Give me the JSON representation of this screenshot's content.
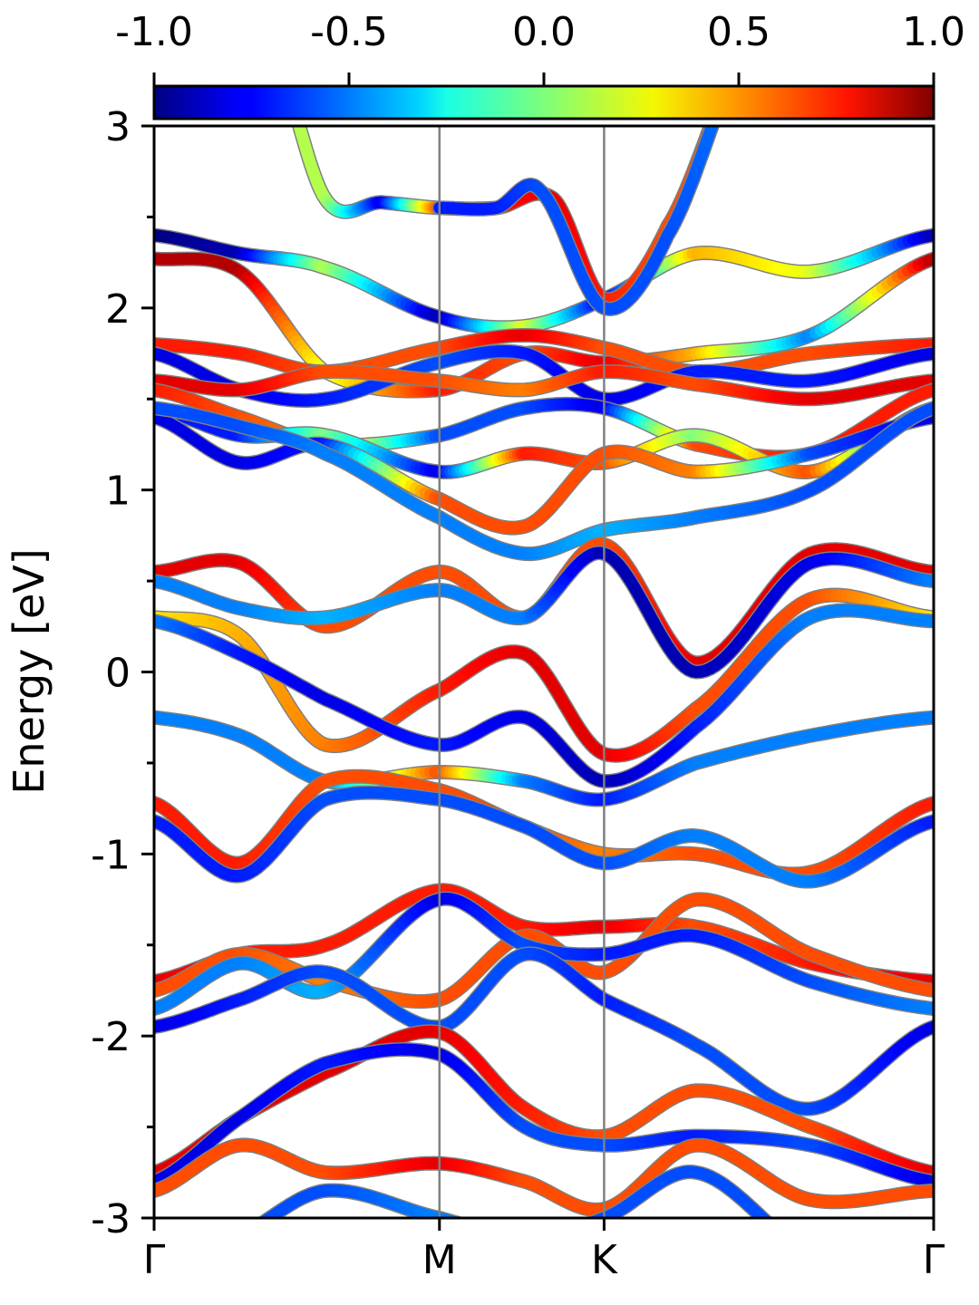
{
  "chart_data": {
    "type": "line",
    "title": "",
    "xlabel": "",
    "ylabel": "Energy [eV]",
    "ylim": [
      -3,
      3
    ],
    "y_ticks": [
      -3,
      -2,
      -1,
      0,
      1,
      2,
      3
    ],
    "y_tick_labels": [
      "-3",
      "-2",
      "-1",
      "0",
      "1",
      "2",
      "3"
    ],
    "k_path": {
      "labels": [
        "Γ",
        "M",
        "K",
        "Γ"
      ],
      "positions": [
        0,
        1,
        1.577,
        2.732
      ]
    },
    "colorbar": {
      "colormap": "jet",
      "range": [
        -1.0,
        1.0
      ],
      "tick_labels": [
        "-1.0",
        "-0.5",
        "0.0",
        "0.5",
        "1.0"
      ],
      "tick_values": [
        -1.0,
        -0.5,
        0.0,
        0.5,
        1.0
      ]
    },
    "grid": false,
    "legend": "none",
    "series": [
      {
        "x": [
          0,
          0.3,
          0.6,
          1.0,
          1.3,
          1.577,
          1.9,
          2.3,
          2.732
        ],
        "y": [
          2.4,
          2.3,
          2.22,
          1.95,
          1.9,
          2.05,
          2.3,
          2.2,
          2.4
        ],
        "c": [
          -1.0,
          -0.9,
          0.1,
          -0.9,
          0.2,
          -0.8,
          0.4,
          0.2,
          -0.9
        ]
      },
      {
        "x": [
          0,
          0.3,
          0.6,
          1.0,
          1.3,
          1.577,
          1.9,
          2.3,
          2.732
        ],
        "y": [
          2.27,
          2.2,
          1.65,
          1.55,
          1.75,
          1.7,
          1.75,
          1.85,
          2.27
        ],
        "c": [
          0.9,
          0.9,
          0.2,
          0.7,
          0.6,
          0.8,
          0.4,
          -0.5,
          0.9
        ]
      },
      {
        "x": [
          0,
          0.3,
          0.6,
          1.0,
          1.3,
          1.577,
          1.9,
          2.3,
          2.732
        ],
        "y": [
          1.8,
          1.75,
          1.65,
          1.78,
          1.85,
          1.78,
          1.65,
          1.75,
          1.8
        ],
        "c": [
          0.7,
          0.7,
          0.6,
          0.6,
          0.8,
          0.6,
          0.6,
          0.6,
          0.7
        ]
      },
      {
        "x": [
          0,
          0.3,
          0.6,
          1.0,
          1.3,
          1.577,
          1.9,
          2.3,
          2.732
        ],
        "y": [
          1.75,
          1.55,
          1.5,
          1.7,
          1.75,
          1.5,
          1.65,
          1.6,
          1.75
        ],
        "c": [
          -0.8,
          -0.8,
          -0.7,
          -0.6,
          -0.7,
          -0.8,
          -0.7,
          -0.7,
          -0.8
        ]
      },
      {
        "x": [
          0,
          0.3,
          0.6,
          1.0,
          1.3,
          1.577,
          1.9,
          2.3,
          2.732
        ],
        "y": [
          1.6,
          1.55,
          1.65,
          1.6,
          1.55,
          1.65,
          1.58,
          1.5,
          1.6
        ],
        "c": [
          0.8,
          0.8,
          0.6,
          0.6,
          0.5,
          0.7,
          0.6,
          0.8,
          0.8
        ]
      },
      {
        "x": [
          0,
          0.3,
          0.6,
          1.0,
          1.3,
          1.577,
          1.9,
          2.3,
          2.732
        ],
        "y": [
          1.55,
          1.4,
          1.25,
          1.3,
          1.45,
          1.45,
          1.25,
          1.2,
          1.55
        ],
        "c": [
          0.7,
          0.6,
          0.5,
          -0.6,
          -0.6,
          -0.8,
          0.6,
          0.7,
          0.7
        ]
      },
      {
        "x": [
          0,
          0.3,
          0.6,
          1.0,
          1.3,
          1.577,
          1.9,
          2.3,
          2.732
        ],
        "y": [
          1.45,
          1.3,
          1.3,
          1.1,
          1.2,
          1.15,
          1.3,
          1.1,
          1.45
        ],
        "c": [
          -0.7,
          -0.7,
          0.0,
          -0.8,
          0.7,
          0.6,
          0.0,
          0.6,
          -0.7
        ]
      },
      {
        "x": [
          0,
          0.3,
          0.6,
          1.0,
          1.3,
          1.577,
          1.9,
          2.3,
          2.732
        ],
        "y": [
          1.4,
          1.15,
          1.25,
          0.95,
          0.8,
          1.2,
          1.1,
          1.2,
          1.4
        ],
        "c": [
          -0.8,
          -0.8,
          -0.7,
          0.6,
          0.6,
          0.6,
          0.5,
          -0.6,
          -0.8
        ]
      },
      {
        "x": [
          0,
          0.3,
          0.6,
          1.0,
          1.3,
          1.577,
          1.9,
          2.3,
          2.732
        ],
        "y": [
          1.45,
          1.35,
          1.2,
          0.85,
          0.65,
          0.78,
          0.85,
          1.0,
          1.45
        ],
        "c": [
          -0.6,
          -0.6,
          -0.5,
          -0.5,
          -0.5,
          -0.4,
          -0.5,
          -0.6,
          -0.6
        ]
      },
      {
        "x": [
          0,
          0.3,
          0.6,
          1.0,
          1.3,
          1.577,
          1.9,
          2.3,
          2.732
        ],
        "y": [
          0.55,
          0.6,
          0.25,
          0.55,
          0.3,
          0.7,
          0.05,
          0.65,
          0.55
        ],
        "c": [
          0.8,
          0.8,
          0.6,
          0.6,
          0.6,
          0.6,
          0.8,
          0.8,
          0.8
        ]
      },
      {
        "x": [
          0,
          0.3,
          0.6,
          1.0,
          1.3,
          1.577,
          1.9,
          2.3,
          2.732
        ],
        "y": [
          0.5,
          0.35,
          0.3,
          0.45,
          0.3,
          0.65,
          0.0,
          0.6,
          0.5
        ],
        "c": [
          -0.5,
          -0.5,
          -0.4,
          -0.5,
          -0.5,
          -0.9,
          -0.9,
          -0.8,
          -0.5
        ]
      },
      {
        "x": [
          0,
          0.3,
          0.6,
          1.0,
          1.3,
          1.577,
          1.9,
          2.3,
          2.732
        ],
        "y": [
          0.3,
          0.2,
          -0.4,
          -0.1,
          0.1,
          -0.45,
          -0.2,
          0.4,
          0.3
        ],
        "c": [
          0.3,
          0.4,
          0.5,
          0.7,
          0.8,
          0.8,
          0.6,
          0.6,
          0.3
        ]
      },
      {
        "x": [
          0,
          0.3,
          0.6,
          1.0,
          1.3,
          1.577,
          1.9,
          2.3,
          2.732
        ],
        "y": [
          0.28,
          0.1,
          -0.15,
          -0.4,
          -0.25,
          -0.6,
          -0.3,
          0.3,
          0.28
        ],
        "c": [
          -0.5,
          -0.7,
          -0.8,
          -0.7,
          -0.8,
          -0.9,
          -0.7,
          -0.5,
          -0.5
        ]
      },
      {
        "x": [
          0,
          0.3,
          0.6,
          1.0,
          1.3,
          1.577,
          1.9,
          2.3,
          2.732
        ],
        "y": [
          -0.25,
          -0.35,
          -0.6,
          -0.55,
          -0.6,
          -0.7,
          -0.5,
          -0.35,
          -0.25
        ],
        "c": [
          -0.5,
          -0.5,
          -0.5,
          0.6,
          -0.5,
          -0.7,
          -0.5,
          -0.5,
          -0.5
        ]
      },
      {
        "x": [
          0,
          0.3,
          0.6,
          1.0,
          1.3,
          1.577,
          1.9,
          2.3,
          2.732
        ],
        "y": [
          -0.72,
          -1.05,
          -0.6,
          -0.65,
          -0.85,
          -1.0,
          -1.0,
          -1.1,
          -0.72
        ],
        "c": [
          0.7,
          0.7,
          0.6,
          0.6,
          0.6,
          0.5,
          0.6,
          0.6,
          0.7
        ]
      },
      {
        "x": [
          0,
          0.3,
          0.6,
          1.0,
          1.3,
          1.577,
          1.9,
          2.3,
          2.732
        ],
        "y": [
          -0.82,
          -1.12,
          -0.7,
          -0.7,
          -0.85,
          -1.05,
          -0.9,
          -1.15,
          -0.82
        ],
        "c": [
          -0.7,
          -0.7,
          -0.6,
          -0.6,
          -0.6,
          -0.6,
          -0.5,
          -0.5,
          -0.7
        ]
      },
      {
        "x": [
          0,
          0.3,
          0.6,
          1.0,
          1.3,
          1.577,
          1.9,
          2.3,
          2.732
        ],
        "y": [
          -1.7,
          -1.55,
          -1.5,
          -1.2,
          -1.4,
          -1.4,
          -1.4,
          -1.6,
          -1.7
        ],
        "c": [
          0.8,
          0.7,
          0.7,
          0.7,
          0.7,
          0.8,
          0.6,
          0.7,
          0.8
        ]
      },
      {
        "x": [
          0,
          0.3,
          0.6,
          1.0,
          1.3,
          1.577,
          1.9,
          2.3,
          2.732
        ],
        "y": [
          -1.75,
          -1.55,
          -1.7,
          -1.8,
          -1.45,
          -1.65,
          -1.25,
          -1.55,
          -1.75
        ],
        "c": [
          0.6,
          0.6,
          0.5,
          0.6,
          0.6,
          0.6,
          0.6,
          0.6,
          0.6
        ]
      },
      {
        "x": [
          0,
          0.3,
          0.6,
          1.0,
          1.3,
          1.577,
          1.9,
          2.3,
          2.732
        ],
        "y": [
          -1.85,
          -1.6,
          -1.75,
          -1.25,
          -1.5,
          -1.55,
          -1.45,
          -1.7,
          -1.85
        ],
        "c": [
          -0.5,
          -0.5,
          -0.4,
          -0.8,
          -0.6,
          -0.7,
          -0.7,
          -0.6,
          -0.5
        ]
      },
      {
        "x": [
          0,
          0.3,
          0.6,
          1.0,
          1.3,
          1.577,
          1.9,
          2.3,
          2.732
        ],
        "y": [
          -1.95,
          -1.8,
          -1.65,
          -1.95,
          -1.55,
          -1.8,
          -2.05,
          -2.4,
          -1.95
        ],
        "c": [
          -0.8,
          -0.7,
          -0.6,
          -0.6,
          -0.6,
          -0.7,
          -0.6,
          -0.6,
          -0.8
        ]
      },
      {
        "x": [
          0,
          0.3,
          0.6,
          1.0,
          1.3,
          1.577,
          1.9,
          2.3,
          2.732
        ],
        "y": [
          -2.75,
          -2.45,
          -2.2,
          -1.98,
          -2.4,
          -2.55,
          -2.3,
          -2.5,
          -2.75
        ],
        "c": [
          0.8,
          0.8,
          0.8,
          0.8,
          0.7,
          0.6,
          0.6,
          0.6,
          0.8
        ]
      },
      {
        "x": [
          0,
          0.3,
          0.6,
          1.0,
          1.3,
          1.577,
          1.9,
          2.3,
          2.732
        ],
        "y": [
          -2.8,
          -2.45,
          -2.15,
          -2.1,
          -2.5,
          -2.6,
          -2.55,
          -2.6,
          -2.8
        ],
        "c": [
          -0.8,
          -0.8,
          -0.7,
          -0.8,
          -0.6,
          -0.6,
          -0.7,
          -0.6,
          -0.8
        ]
      },
      {
        "x": [
          0,
          0.3,
          0.6,
          1.0,
          1.3,
          1.577,
          1.9,
          2.3,
          2.732
        ],
        "y": [
          -2.85,
          -2.6,
          -2.75,
          -2.7,
          -2.8,
          -2.95,
          -2.6,
          -2.9,
          -2.85
        ],
        "c": [
          0.6,
          0.6,
          0.6,
          0.8,
          0.6,
          0.6,
          0.6,
          0.6,
          0.6
        ]
      },
      {
        "x": [
          0,
          0.3,
          0.6,
          1.0,
          1.3,
          1.577,
          1.9,
          2.3,
          2.732
        ],
        "y": [
          -3.3,
          -3.1,
          -2.85,
          -3.0,
          -3.1,
          -3.0,
          -2.75,
          -3.2,
          -3.3
        ],
        "c": [
          -0.6,
          -0.6,
          -0.6,
          -0.5,
          -0.6,
          -0.6,
          -0.6,
          -0.6,
          -0.6
        ]
      },
      {
        "x": [
          0.4,
          0.6,
          0.8,
          1.0,
          1.2,
          1.4,
          1.577,
          1.8,
          2.1
        ],
        "y": [
          3.5,
          2.6,
          2.58,
          2.55,
          2.55,
          2.6,
          2.05,
          2.45,
          3.5
        ],
        "c": [
          0.1,
          0.1,
          -0.8,
          0.6,
          0.7,
          0.8,
          0.7,
          0.6,
          0.6
        ]
      },
      {
        "x": [
          1.0,
          1.2,
          1.35,
          1.577,
          1.8,
          2.1
        ],
        "y": [
          2.55,
          2.55,
          2.65,
          2.0,
          2.4,
          3.5
        ],
        "c": [
          -0.7,
          -0.7,
          -0.6,
          -0.6,
          -0.6,
          -0.5
        ]
      }
    ]
  }
}
